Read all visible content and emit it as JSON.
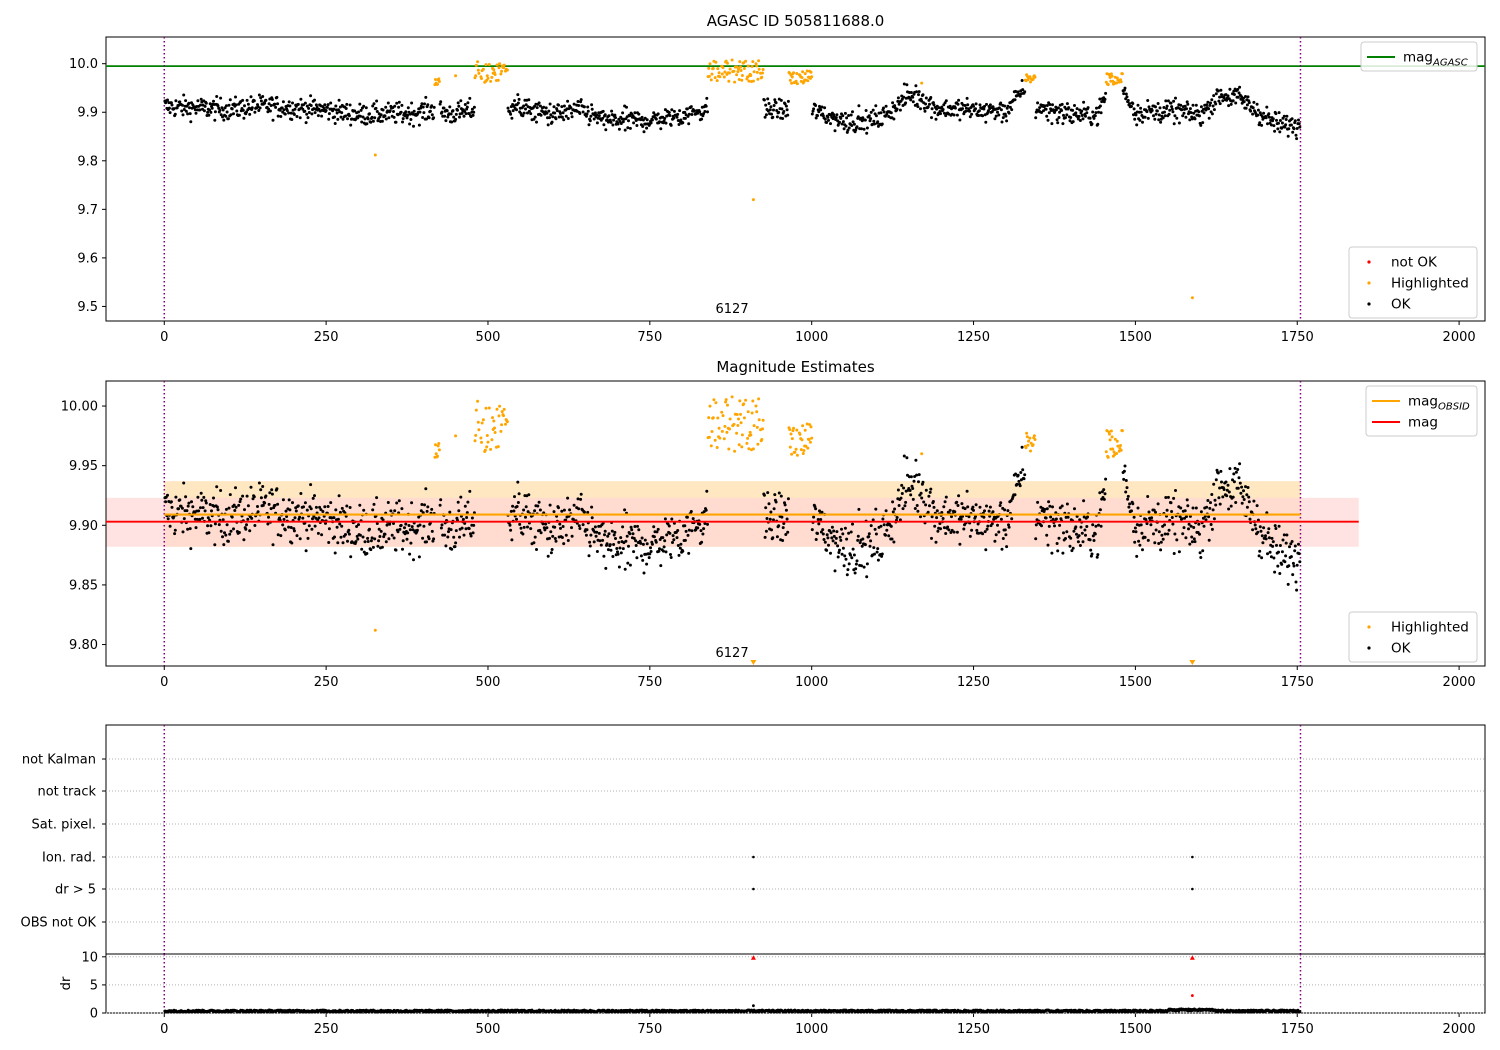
{
  "figure_title": "AGASC ID 505811688.0",
  "colors": {
    "ok": "#000000",
    "highlighted": "#ffa500",
    "not_ok": "#ff0000",
    "mag_agasc": "#008000",
    "mag_obsid": "#ffa500",
    "mag": "#ff0000",
    "interval": "#800080",
    "band_obsid": "#ffe7c2",
    "band_mag": "#ffd6d6"
  },
  "chart_data": [
    {
      "type": "scatter",
      "title": "AGASC ID 505811688.0",
      "xlim": [
        -90,
        2040
      ],
      "ylim": [
        9.47,
        10.055
      ],
      "xticks": [
        "0",
        "250",
        "500",
        "750",
        "1000",
        "1250",
        "1500",
        "1750",
        "2000"
      ],
      "yticks": [
        "9.5",
        "9.6",
        "9.7",
        "9.8",
        "9.9",
        "10.0"
      ],
      "obs_boundaries": [
        0,
        1755
      ],
      "obsid_label": "6127",
      "mag_agasc": 9.995,
      "series": [
        {
          "name": "not OK",
          "points": []
        },
        {
          "name": "Highlighted",
          "segments": [
            [
              418,
              425,
              9.95,
              9.97
            ],
            [
              480,
              530,
              9.96,
              10.005
            ],
            [
              840,
              925,
              9.962,
              10.008
            ],
            [
              965,
              1000,
              9.958,
              9.985
            ],
            [
              1330,
              1345,
              9.96,
              9.978
            ],
            [
              1455,
              1480,
              9.955,
              9.98
            ]
          ],
          "points": [
            [
              326,
              9.812
            ],
            [
              450,
              9.975
            ],
            [
              910,
              9.72
            ],
            [
              1588,
              9.518
            ],
            [
              1170,
              9.96
            ]
          ]
        },
        {
          "name": "OK",
          "baseline": 9.905,
          "count": 1755
        }
      ],
      "legend": [
        {
          "label": "mag",
          "sub": "AGASC",
          "kind": "line"
        },
        {
          "label": "not OK",
          "kind": "dot"
        },
        {
          "label": "Highlighted",
          "kind": "dot"
        },
        {
          "label": "OK",
          "kind": "dot"
        }
      ]
    },
    {
      "type": "scatter",
      "title": "Magnitude Estimates",
      "xlim": [
        -90,
        2040
      ],
      "ylim": [
        9.782,
        10.021
      ],
      "xticks": [
        "0",
        "250",
        "500",
        "750",
        "1000",
        "1250",
        "1500",
        "1750",
        "2000"
      ],
      "yticks": [
        "9.80",
        "9.85",
        "9.90",
        "9.95",
        "10.00"
      ],
      "obs_boundaries": [
        0,
        1755
      ],
      "obsid_label": "6127",
      "mag_obsid": 9.909,
      "mag_obsid_band": [
        9.882,
        9.937
      ],
      "mag": 9.903,
      "mag_band": [
        9.882,
        9.923
      ],
      "mag_band_xmax": 1845,
      "offscale_markers": [
        910,
        1588
      ],
      "series": [
        {
          "name": "Highlighted"
        },
        {
          "name": "OK"
        }
      ],
      "legend": [
        {
          "label": "mag",
          "sub": "OBSID",
          "kind": "line"
        },
        {
          "label": "mag",
          "kind": "line"
        },
        {
          "label": "Highlighted",
          "kind": "dot"
        },
        {
          "label": "OK",
          "kind": "dot"
        }
      ]
    },
    {
      "type": "scatter",
      "flags": [
        "not Kalman",
        "not track",
        "Sat. pixel.",
        "Ion. rad.",
        "dr > 5",
        "OBS not OK"
      ],
      "flag_points": {
        "Ion. rad.": [
          910,
          1588
        ],
        "dr > 5": [
          910,
          1588
        ]
      },
      "xlim": [
        -90,
        2040
      ],
      "obs_boundaries": [
        0,
        1755
      ]
    },
    {
      "type": "scatter",
      "ylabel": "dr",
      "xlim": [
        -90,
        2040
      ],
      "ylim": [
        0,
        10.5
      ],
      "xticks": [
        "0",
        "250",
        "500",
        "750",
        "1000",
        "1250",
        "1500",
        "1750",
        "2000"
      ],
      "yticks": [
        "0",
        "5",
        "10"
      ],
      "obs_boundaries": [
        0,
        1755
      ],
      "outliers": [
        [
          910,
          1.3
        ],
        [
          1588,
          3.1
        ]
      ],
      "clipped": [
        910,
        1588
      ],
      "baseline": 0.35
    }
  ]
}
